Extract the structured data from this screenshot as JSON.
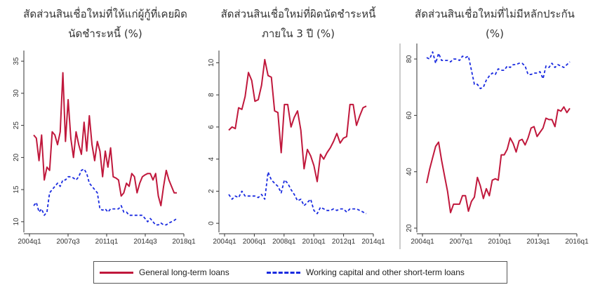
{
  "colors": {
    "long_term": "#c0183c",
    "working_capital": "#1a2be0"
  },
  "legend": {
    "long_term": "General long-term loans",
    "working_capital": "Working capital and other short-term loans"
  },
  "chart_data": [
    {
      "type": "line",
      "title": "สัดส่วนสินเชื่อใหม่ที่ให้แก่ผู้กู้ที่เคยผิดนัดชำระหนี้ (%)",
      "title_lines": [
        "สัดส่วนสินเชื่อใหม่ที่ให้แก่ผู้กู้ที่เคยผิด",
        "นัดชำระหนี้ (%)"
      ],
      "x_tick_labels": [
        "2004q1",
        "2007q3",
        "2011q1",
        "2014q3",
        "2018q1"
      ],
      "y_ticks": [
        10,
        15,
        20,
        25,
        30,
        35
      ],
      "ylim": [
        9,
        36
      ],
      "x": {
        "start": "2004q1",
        "step": "quarter",
        "count": 55
      },
      "series": [
        {
          "name": "General long-term loans",
          "values": [
            23.5,
            23,
            19.5,
            23.5,
            16.5,
            18.5,
            18,
            24,
            23.5,
            22,
            24,
            33.2,
            22.5,
            29,
            23,
            20,
            24,
            22,
            20.5,
            25.5,
            21,
            26.5,
            22,
            19.5,
            22.5,
            21,
            17,
            21,
            18.5,
            21.5,
            17,
            16.8,
            16.5,
            14,
            14.5,
            16,
            15.5,
            17.5,
            17,
            14.5,
            16,
            17,
            17.3,
            17.5,
            17.5,
            16.5,
            17.5,
            14,
            12.5,
            15.5,
            18,
            16.5,
            15.5,
            14.5,
            14.5
          ]
        },
        {
          "name": "Working capital and other short-term loans",
          "values": [
            12.5,
            13,
            11.5,
            12,
            11,
            11.5,
            14.5,
            15,
            15.5,
            16,
            15.5,
            16.5,
            16.5,
            17,
            17,
            16.8,
            16.5,
            17,
            18,
            18.2,
            17.5,
            16,
            15.5,
            15,
            14.5,
            12,
            11.8,
            12,
            11.5,
            12,
            12,
            12,
            12,
            12.5,
            11.5,
            11.5,
            11,
            11,
            11,
            11,
            11,
            11,
            10.5,
            10,
            10.5,
            10,
            9.5,
            9.5,
            9.8,
            9.5,
            9.5,
            9.8,
            10,
            10.2,
            10.5
          ]
        }
      ]
    },
    {
      "type": "line",
      "title": "สัดส่วนสินเชื่อใหม่ที่ผิดนัดชำระหนี้ภายใน 3 ปี (%)",
      "title_lines": [
        "สัดส่วนสินเชื่อใหม่ที่ผิดนัดชำระหนี้",
        "ภายใน 3 ปี (%)"
      ],
      "x_tick_labels": [
        "2004q1",
        "2006q1",
        "2008q1",
        "2010q1",
        "2012q1",
        "2014q1"
      ],
      "y_ticks": [
        0,
        2,
        4,
        6,
        8,
        10
      ],
      "ylim": [
        -0.3,
        10.5
      ],
      "x": {
        "start": "2004q1",
        "step": "quarter",
        "count": 43
      },
      "series": [
        {
          "name": "General long-term loans",
          "values": [
            5.8,
            6,
            5.9,
            7.2,
            7.1,
            7.9,
            9.4,
            8.9,
            7.6,
            7.7,
            8.6,
            10.2,
            9.2,
            9.1,
            7,
            6.9,
            4.4,
            7.4,
            7.4,
            6,
            6.6,
            7,
            5.8,
            3.4,
            4.6,
            4.2,
            3.6,
            2.6,
            4.3,
            4,
            4.4,
            4.7,
            5.1,
            5.6,
            5,
            5.3,
            5.4,
            7.4,
            7.4,
            6.1,
            6.7,
            7.2,
            7.3
          ]
        },
        {
          "name": "Working capital and other short-term loans",
          "values": [
            1.8,
            1.5,
            1.7,
            1.6,
            2,
            1.7,
            1.7,
            1.7,
            1.7,
            1.6,
            1.8,
            1.5,
            3.2,
            2.7,
            2.5,
            2.3,
            1.9,
            2.7,
            2.5,
            2.1,
            1.8,
            1.4,
            1.5,
            1.1,
            1.3,
            1.5,
            0.8,
            0.6,
            1,
            0.9,
            0.8,
            0.8,
            0.9,
            0.8,
            0.9,
            0.9,
            0.7,
            0.9,
            0.9,
            0.9,
            0.8,
            0.7,
            0.6
          ]
        }
      ]
    },
    {
      "type": "line",
      "title": "สัดส่วนสินเชื่อใหม่ที่ไม่มีหลักประกัน (%)",
      "title_lines": [
        "สัดส่วนสินเชื่อใหม่ที่ไม่มีหลักประกัน",
        "(%)"
      ],
      "x_tick_labels": [
        "2004q1",
        "2007q1",
        "2010q1",
        "2013q1",
        "2016q1"
      ],
      "y_ticks": [
        20,
        40,
        60,
        80
      ],
      "ylim": [
        20,
        84
      ],
      "x": {
        "start": "2004q1",
        "step": "quarter",
        "count": 49
      },
      "series": [
        {
          "name": "General long-term loans",
          "values": [
            36,
            41,
            45,
            49,
            50.5,
            44,
            38.5,
            33,
            25.5,
            28.5,
            28.5,
            28.5,
            31.5,
            31.5,
            26,
            29.5,
            31,
            38,
            35,
            30.5,
            34,
            31.5,
            37,
            37.5,
            37,
            46,
            46,
            48,
            52,
            50,
            47,
            51,
            51.5,
            49.5,
            52,
            55.5,
            56,
            52.5,
            54,
            55.5,
            59,
            58.5,
            58.5,
            56,
            62,
            61.5,
            63,
            61,
            62.5
          ]
        },
        {
          "name": "Working capital and other short-term loans",
          "values": [
            80.5,
            80,
            82.5,
            78.5,
            82,
            79.5,
            79.5,
            79.5,
            79,
            80,
            80,
            79.5,
            81,
            80.5,
            81,
            76,
            71,
            71,
            69.5,
            70,
            72.5,
            74,
            75,
            74.5,
            76.5,
            76,
            76,
            77.5,
            77,
            78,
            78,
            78.5,
            78.5,
            77.5,
            74.5,
            74.5,
            75,
            75,
            75.5,
            73,
            77.5,
            77,
            78.5,
            77,
            78,
            77.5,
            77,
            78,
            79
          ]
        }
      ]
    }
  ]
}
